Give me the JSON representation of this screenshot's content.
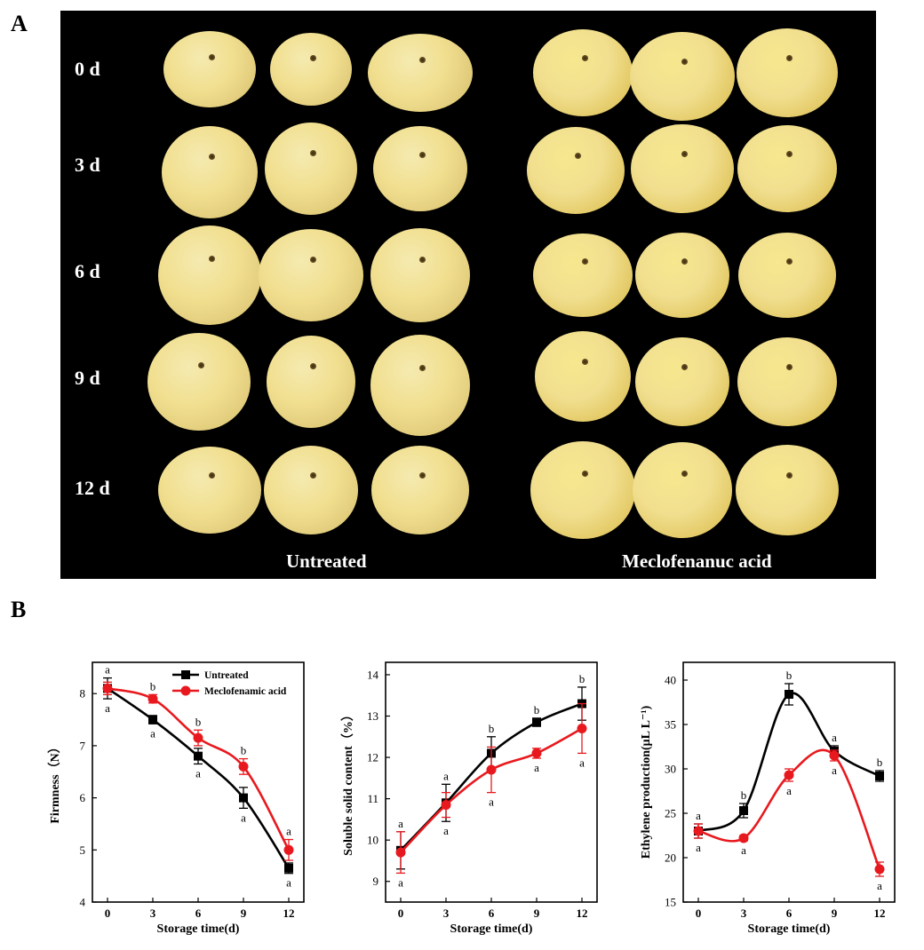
{
  "panel_labels": {
    "a": "A",
    "b": "B"
  },
  "photo_panel": {
    "row_labels": [
      "0 d",
      "3 d",
      "6 d",
      "9 d",
      "12 d"
    ],
    "group_labels": [
      "Untreated",
      "Meclofenanuc acid"
    ],
    "background": "#000000",
    "fruit_color": "#f1df8f"
  },
  "chart_data": [
    {
      "type": "line",
      "xlabel": "Storage time(d)",
      "ylabel": "Firmness（N）",
      "x": [
        0,
        3,
        6,
        9,
        12
      ],
      "xticks": [
        "0",
        "3",
        "6",
        "9",
        "12"
      ],
      "yticks": [
        "4",
        "5",
        "6",
        "7",
        "8"
      ],
      "ylim": [
        4,
        8.6
      ],
      "legend": {
        "position": "top-right",
        "entries": [
          "Untreated",
          "Meclofenamic acid"
        ]
      },
      "series": [
        {
          "name": "Untreated",
          "color": "#000000",
          "marker": "square",
          "values": [
            8.1,
            7.5,
            6.8,
            6.0,
            4.65
          ],
          "errors": [
            0.2,
            0.08,
            0.15,
            0.2,
            0.1
          ],
          "letters": [
            "a",
            "a",
            "a",
            "a",
            "a"
          ]
        },
        {
          "name": "Meclofenamic acid",
          "color": "#e8191e",
          "marker": "circle",
          "values": [
            8.1,
            7.9,
            7.15,
            6.6,
            5.0
          ],
          "errors": [
            0.12,
            0.08,
            0.15,
            0.15,
            0.2
          ],
          "letters": [
            "a",
            "b",
            "b",
            "b",
            "a"
          ]
        }
      ]
    },
    {
      "type": "line",
      "xlabel": "Storage time(d)",
      "ylabel": "Soluble solid content（%）",
      "x": [
        0,
        3,
        6,
        9,
        12
      ],
      "xticks": [
        "0",
        "3",
        "6",
        "9",
        "12"
      ],
      "yticks": [
        "9",
        "10",
        "11",
        "12",
        "13",
        "14"
      ],
      "ylim": [
        8.5,
        14.3
      ],
      "series": [
        {
          "name": "Untreated",
          "color": "#000000",
          "marker": "square",
          "values": [
            9.75,
            10.9,
            12.1,
            12.85,
            13.3
          ],
          "errors": [
            0.45,
            0.45,
            0.4,
            0.1,
            0.4
          ],
          "letters": [
            "a",
            "a",
            "b",
            "b",
            "b"
          ]
        },
        {
          "name": "Meclofenamic acid",
          "color": "#e8191e",
          "marker": "circle",
          "values": [
            9.7,
            10.85,
            11.7,
            12.1,
            12.7
          ],
          "errors": [
            0.5,
            0.3,
            0.55,
            0.12,
            0.6
          ],
          "letters": [
            "a",
            "a",
            "a",
            "a",
            "a"
          ]
        }
      ]
    },
    {
      "type": "line",
      "xlabel": "Storage time(d)",
      "ylabel": "Ethylene production(μL L⁻¹)",
      "x": [
        0,
        3,
        6,
        9,
        12
      ],
      "xticks": [
        "0",
        "3",
        "6",
        "9",
        "12"
      ],
      "yticks": [
        "15",
        "20",
        "25",
        "30",
        "35",
        "40"
      ],
      "ylim": [
        15,
        42
      ],
      "series": [
        {
          "name": "Untreated",
          "color": "#000000",
          "marker": "square",
          "values": [
            23.0,
            25.3,
            38.4,
            32.0,
            29.2
          ],
          "errors": [
            0.8,
            0.8,
            1.2,
            0.6,
            0.6
          ],
          "letters": [
            "a",
            "b",
            "b",
            "a",
            "b"
          ]
        },
        {
          "name": "Meclofenamic acid",
          "color": "#e8191e",
          "marker": "circle",
          "values": [
            23.0,
            22.2,
            29.3,
            31.5,
            18.7
          ],
          "errors": [
            0.8,
            0.3,
            0.7,
            0.6,
            0.8
          ],
          "letters": [
            "a",
            "a",
            "a",
            "a",
            "a"
          ]
        }
      ]
    }
  ]
}
